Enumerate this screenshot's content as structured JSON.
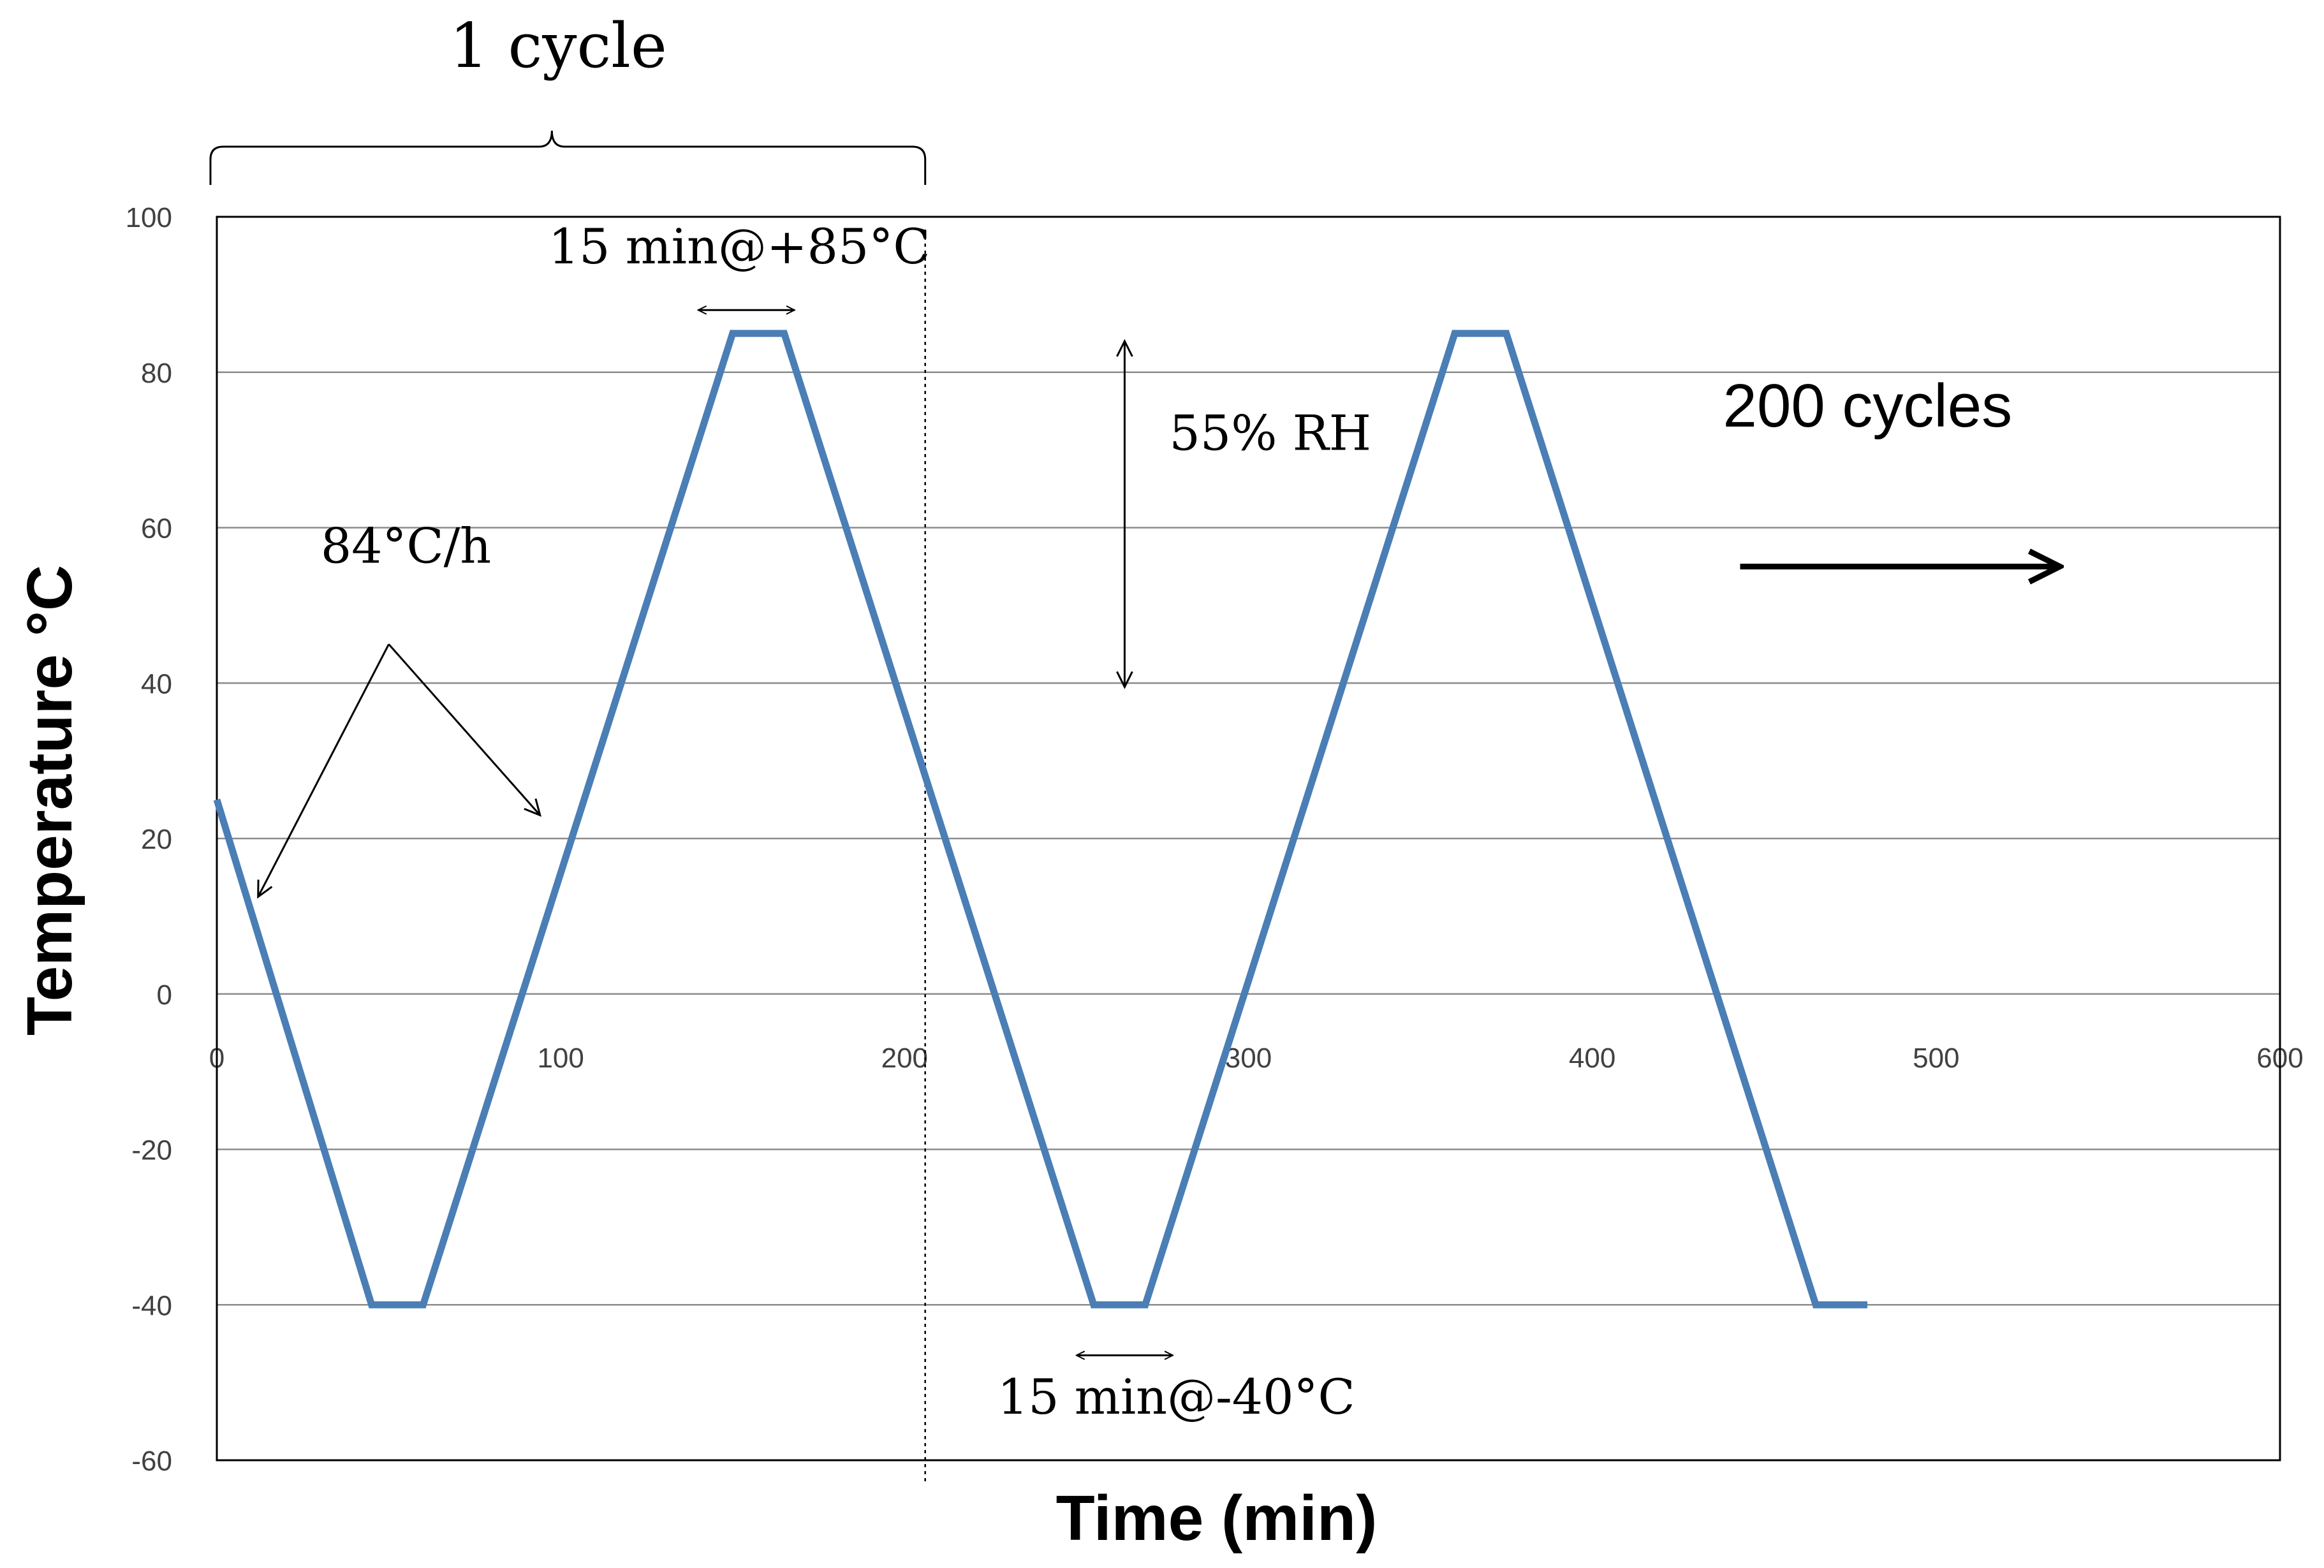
{
  "chart_data": {
    "type": "line",
    "title": "",
    "xlabel": "Time (min)",
    "ylabel": "Temperature °C",
    "xlim": [
      0,
      600
    ],
    "ylim": [
      -60,
      100
    ],
    "xticks": [
      0,
      100,
      200,
      300,
      400,
      500,
      600
    ],
    "yticks": [
      -60,
      -40,
      -20,
      0,
      20,
      40,
      60,
      80,
      100
    ],
    "xtick_labels": [
      "0",
      "100",
      "200",
      "300",
      "400",
      "500",
      "600"
    ],
    "ytick_labels": [
      "-60",
      "-40",
      "-20",
      "0",
      "20",
      "40",
      "60",
      "80",
      "100"
    ],
    "grid": "horizontal",
    "series": [
      {
        "name": "Temperature",
        "color": "#4a7eb5",
        "x": [
          0,
          45,
          60,
          150,
          165,
          255,
          270,
          360,
          375,
          465,
          480
        ],
        "y": [
          25,
          -40,
          -40,
          85,
          85,
          -40,
          -40,
          85,
          85,
          -40,
          -40
        ]
      }
    ],
    "cycle_boundary_x": 206,
    "annotations": {
      "cycle_label": "1 cycle",
      "dwell_high": "15 min@+85°C",
      "dwell_low": "15 min@-40°C",
      "ramp_rate": "84°C/h",
      "humidity": "55% RH",
      "cycles_total": "200 cycles"
    }
  }
}
